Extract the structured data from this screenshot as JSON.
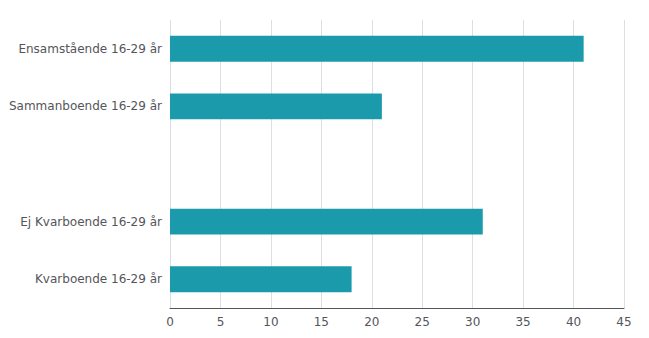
{
  "chart_data": {
    "type": "bar",
    "orientation": "horizontal",
    "categories": [
      "Kvarboende 16-29 år",
      "Ej Kvarboende 16-29 år",
      null,
      "Sammanboende 16-29 år",
      "Ensamstående 16-29 år"
    ],
    "values": [
      18,
      31,
      null,
      21,
      41
    ],
    "color": "#1a9aab",
    "xlim": [
      0,
      45
    ],
    "xticks": [
      0,
      5,
      10,
      15,
      20,
      25,
      30,
      35,
      40,
      45
    ],
    "grid": true
  }
}
